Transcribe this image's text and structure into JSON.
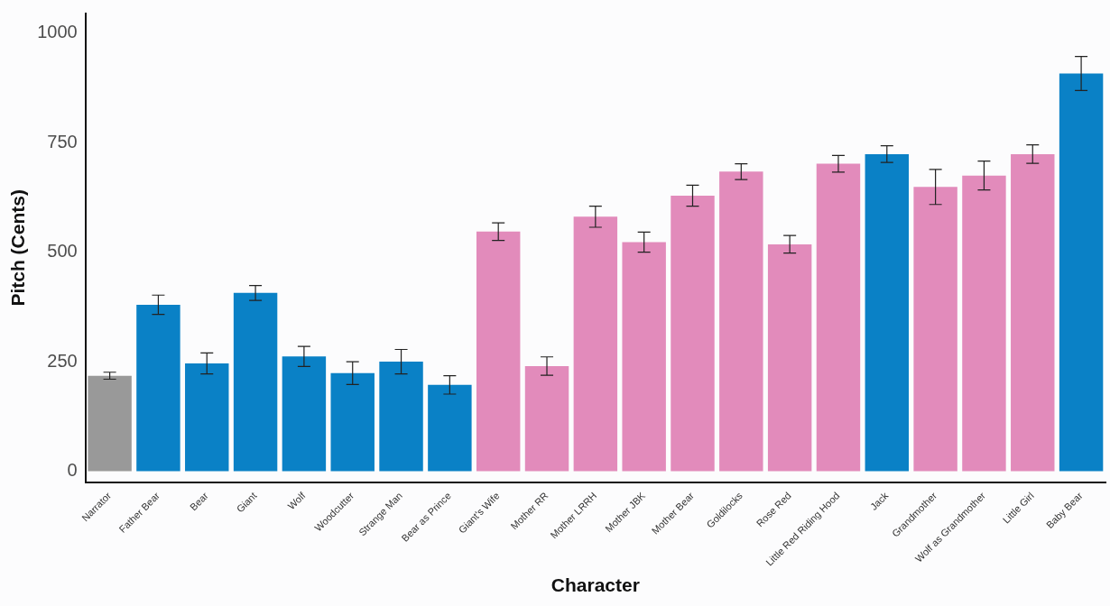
{
  "chart_data": {
    "type": "bar",
    "xlabel": "Character",
    "ylabel": "Pitch (Cents)",
    "categories": [
      "Narrator",
      "Father Bear",
      "Bear",
      "Giant",
      "Wolf",
      "Woodcutter",
      "Strange Man",
      "Bear as Prince",
      "Giant's Wife",
      "Mother RR",
      "Mother LRRH",
      "Mother JBK",
      "Mother Bear",
      "Goldilocks",
      "Rose Red",
      "Little Red Riding Hood",
      "Jack",
      "Grandmother",
      "Wolf as Grandmother",
      "Little Girl",
      "Baby Bear"
    ],
    "values": [
      218,
      380,
      246,
      407,
      262,
      224,
      250,
      197,
      547,
      240,
      581,
      523,
      629,
      684,
      518,
      702,
      724,
      649,
      675,
      724,
      908
    ],
    "errors": [
      8,
      22,
      24,
      17,
      23,
      26,
      28,
      21,
      20,
      21,
      24,
      23,
      24,
      18,
      20,
      19,
      19,
      40,
      33,
      21,
      39
    ],
    "colors": [
      "#999999",
      "#0a81c6",
      "#0a81c6",
      "#0a81c6",
      "#0a81c6",
      "#0a81c6",
      "#0a81c6",
      "#0a81c6",
      "#e28bbb",
      "#e28bbb",
      "#e28bbb",
      "#e28bbb",
      "#e28bbb",
      "#e28bbb",
      "#e28bbb",
      "#e28bbb",
      "#0a81c6",
      "#e28bbb",
      "#e28bbb",
      "#e28bbb",
      "#0a81c6"
    ],
    "ylim": [
      -25,
      1045
    ],
    "yticks": [
      0,
      250,
      500,
      750,
      1000
    ],
    "grid": false,
    "legend": false
  }
}
